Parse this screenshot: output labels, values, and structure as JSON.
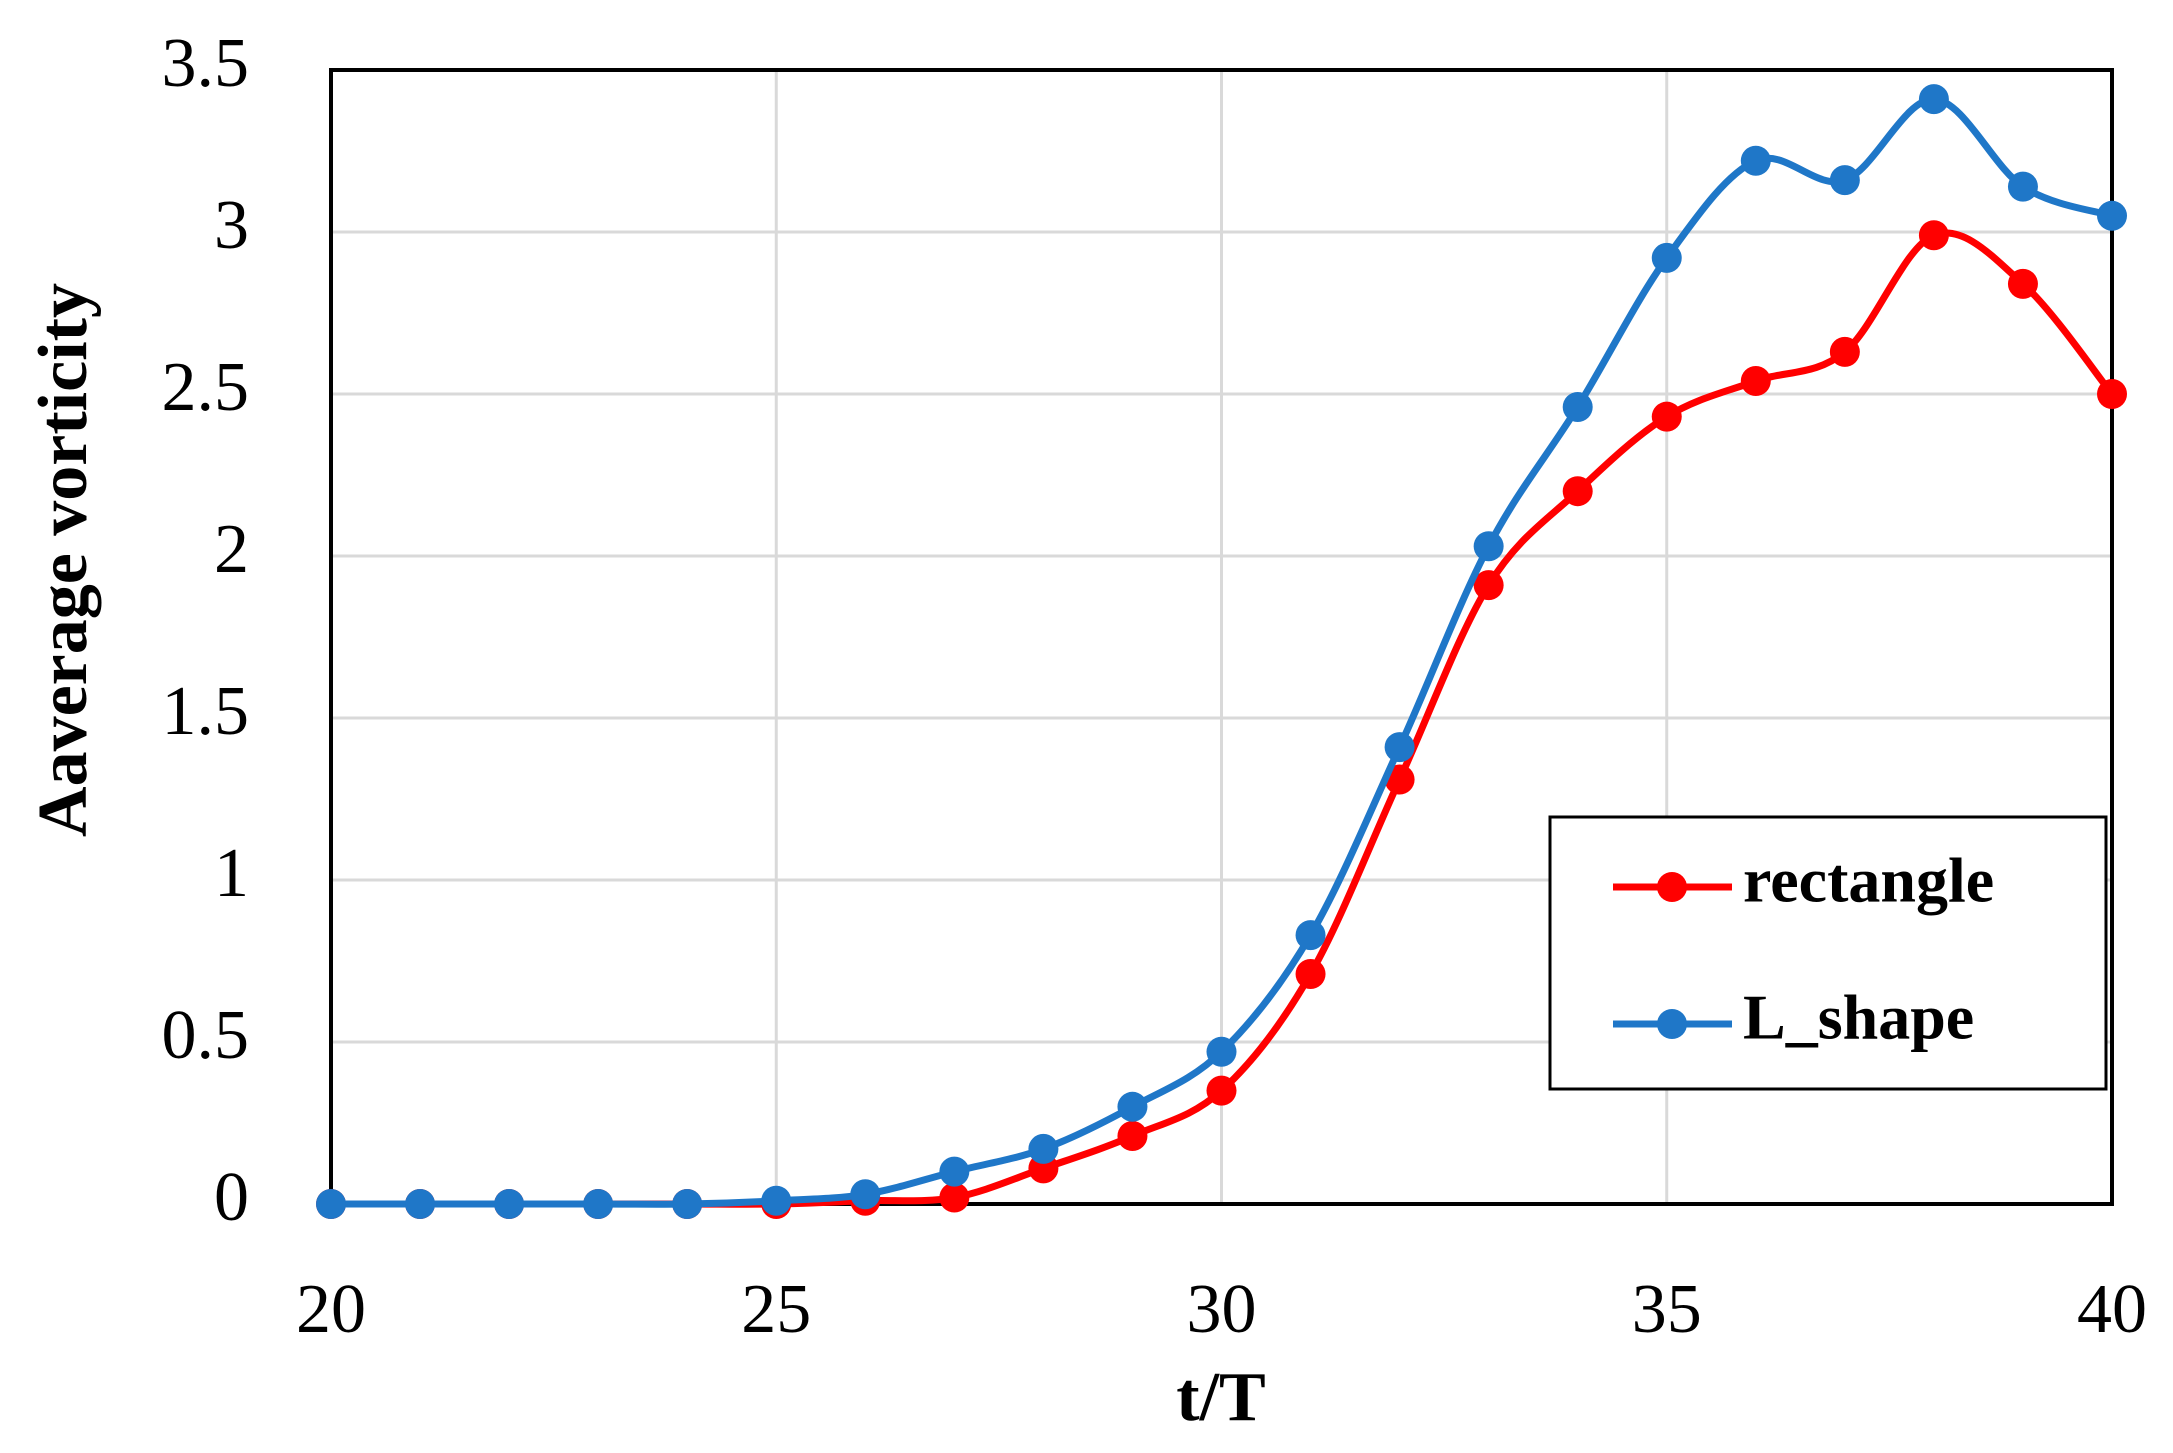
{
  "chart_data": {
    "type": "line",
    "x_label": "t/T",
    "y_label": "Aaverage vorticity",
    "x": [
      20,
      21,
      22,
      23,
      24,
      25,
      26,
      27,
      28,
      29,
      30,
      31,
      32,
      33,
      34,
      35,
      36,
      37,
      38,
      39,
      40
    ],
    "series": [
      {
        "name": "rectangle",
        "color": "#ff0000",
        "values": [
          0,
          0,
          0,
          0,
          0,
          0,
          0.01,
          0.02,
          0.11,
          0.21,
          0.35,
          0.71,
          1.31,
          1.91,
          2.2,
          2.43,
          2.54,
          2.63,
          2.99,
          2.84,
          2.5
        ]
      },
      {
        "name": "L_shape",
        "color": "#1f77c8",
        "values": [
          0,
          0,
          0,
          0,
          0,
          0.01,
          0.03,
          0.1,
          0.17,
          0.3,
          0.47,
          0.83,
          1.41,
          2.03,
          2.46,
          2.92,
          3.22,
          3.16,
          3.41,
          3.14,
          3.05
        ]
      }
    ],
    "xlim": [
      20,
      40
    ],
    "xticks": [
      20,
      25,
      30,
      35,
      40
    ],
    "ylim": [
      0,
      3.5
    ],
    "yticks": [
      0,
      0.5,
      1,
      1.5,
      2,
      2.5,
      3,
      3.5
    ],
    "grid": true,
    "legend": "lower right"
  }
}
